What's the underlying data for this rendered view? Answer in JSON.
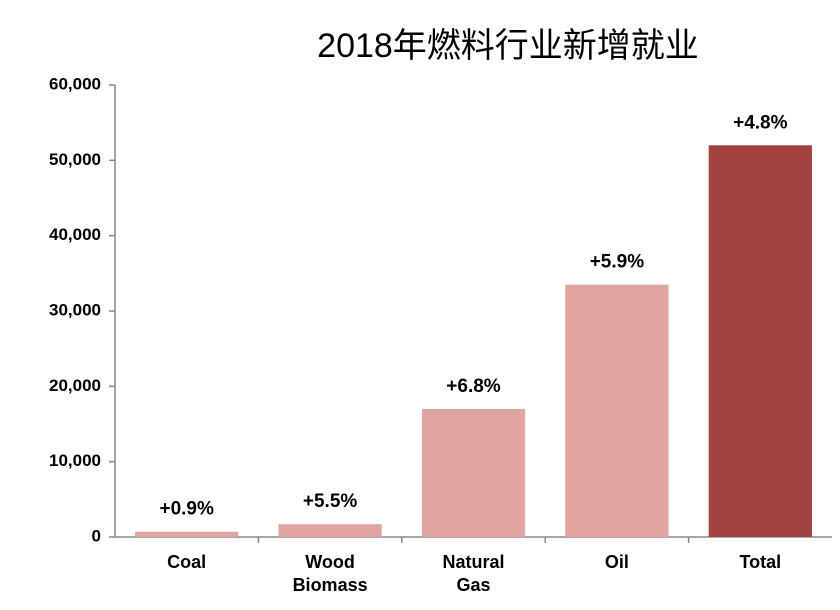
{
  "chart_data": {
    "type": "bar",
    "title": "2018年燃料行业新增就业",
    "categories": [
      "Coal",
      "Wood Biomass",
      "Natural Gas",
      "Oil",
      "Total"
    ],
    "values": [
      700,
      1700,
      17000,
      33500,
      52000
    ],
    "annotations": [
      "+0.9%",
      "+5.5%",
      "+6.8%",
      "+5.9%",
      "+4.8%"
    ],
    "colors": [
      "#e0a4a3",
      "#e0a4a3",
      "#e0a4a3",
      "#e0a4a3",
      "#a04341"
    ],
    "ylim": [
      0,
      60000
    ],
    "yticks": [
      0,
      {
        "value": 10000,
        "label": "10,000"
      },
      {
        "value": 20000,
        "label": "20,000"
      },
      {
        "value": 30000,
        "label": "30,000"
      },
      {
        "value": 40000,
        "label": "40,000"
      },
      {
        "value": 50000,
        "label": "50,000"
      },
      {
        "value": 60000,
        "label": "60,000"
      }
    ],
    "grid": false
  }
}
